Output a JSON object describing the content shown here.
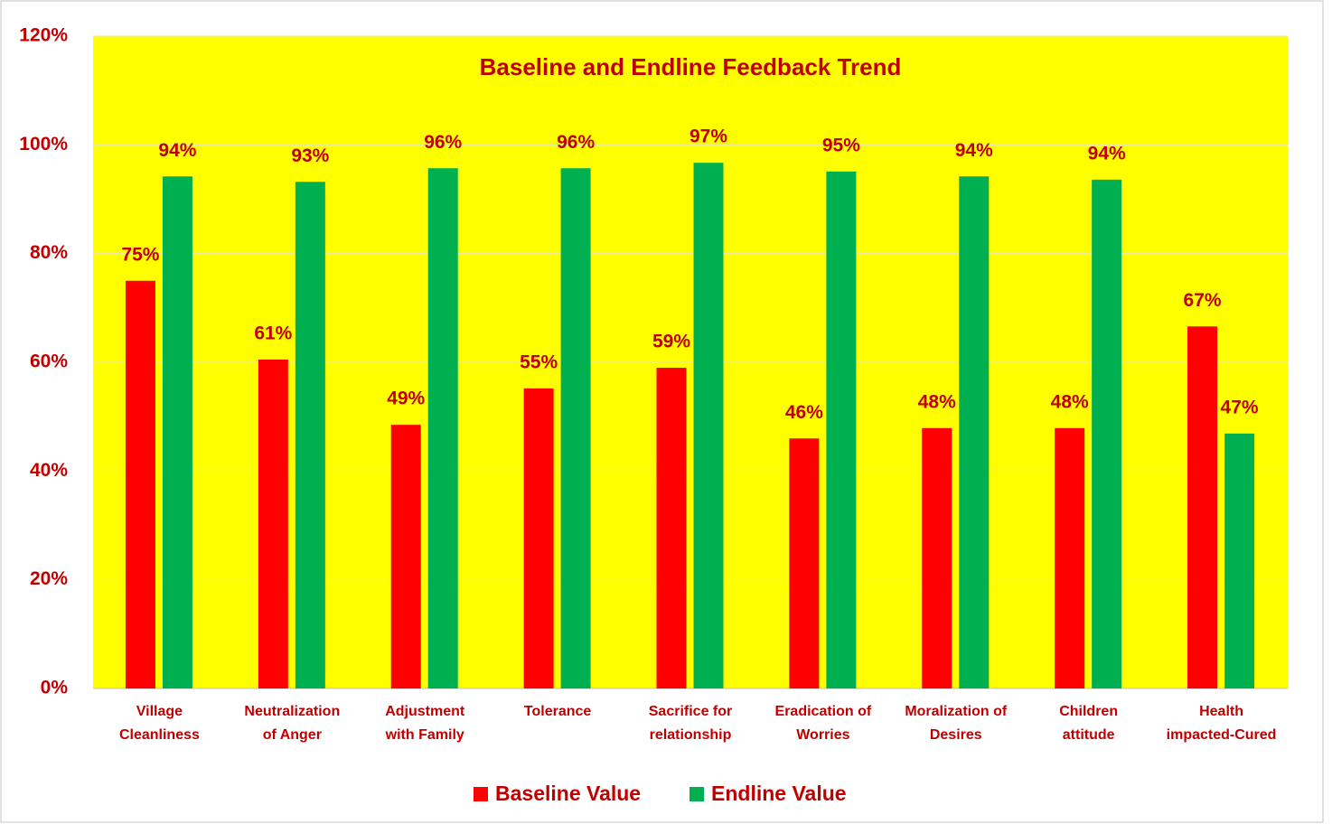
{
  "chart_data": {
    "type": "bar",
    "title": "Baseline and Endline Feedback Trend",
    "categories": [
      "Village\nCleanliness",
      "Neutralization\nof Anger",
      "Adjustment\nwith Family",
      "Tolerance",
      "Sacrifice for\nrelationship",
      "Eradication of\nWorries",
      "Moralization of\nDesires",
      "Children\nattitude",
      "Health\nimpacted-Cured"
    ],
    "series": [
      {
        "name": "Baseline Value",
        "color": "#ff0000",
        "values": [
          75.0,
          60.5,
          48.5,
          55.2,
          59.0,
          46.0,
          47.9,
          47.9,
          66.6
        ],
        "value_labels": [
          "75%",
          "61%",
          "49%",
          "55%",
          "59%",
          "46%",
          "48%",
          "48%",
          "67%"
        ]
      },
      {
        "name": "Endline Value",
        "color": "#00b050",
        "values": [
          94.2,
          93.2,
          95.7,
          95.7,
          96.7,
          95.1,
          94.2,
          93.6,
          46.9
        ],
        "value_labels": [
          "94%",
          "93%",
          "96%",
          "96%",
          "97%",
          "95%",
          "94%",
          "94%",
          "47%"
        ]
      }
    ],
    "ylim": [
      0,
      120
    ],
    "yticks": [
      {
        "value": 0,
        "label": "0%"
      },
      {
        "value": 20,
        "label": "20%"
      },
      {
        "value": 40,
        "label": "40%"
      },
      {
        "value": 60,
        "label": "60%"
      },
      {
        "value": 80,
        "label": "80%"
      },
      {
        "value": 100,
        "label": "100%"
      },
      {
        "value": 120,
        "label": "120%"
      }
    ],
    "grid": true,
    "legend": "bottom",
    "plot_background": "#ffff00",
    "text_color": "#c00000"
  }
}
